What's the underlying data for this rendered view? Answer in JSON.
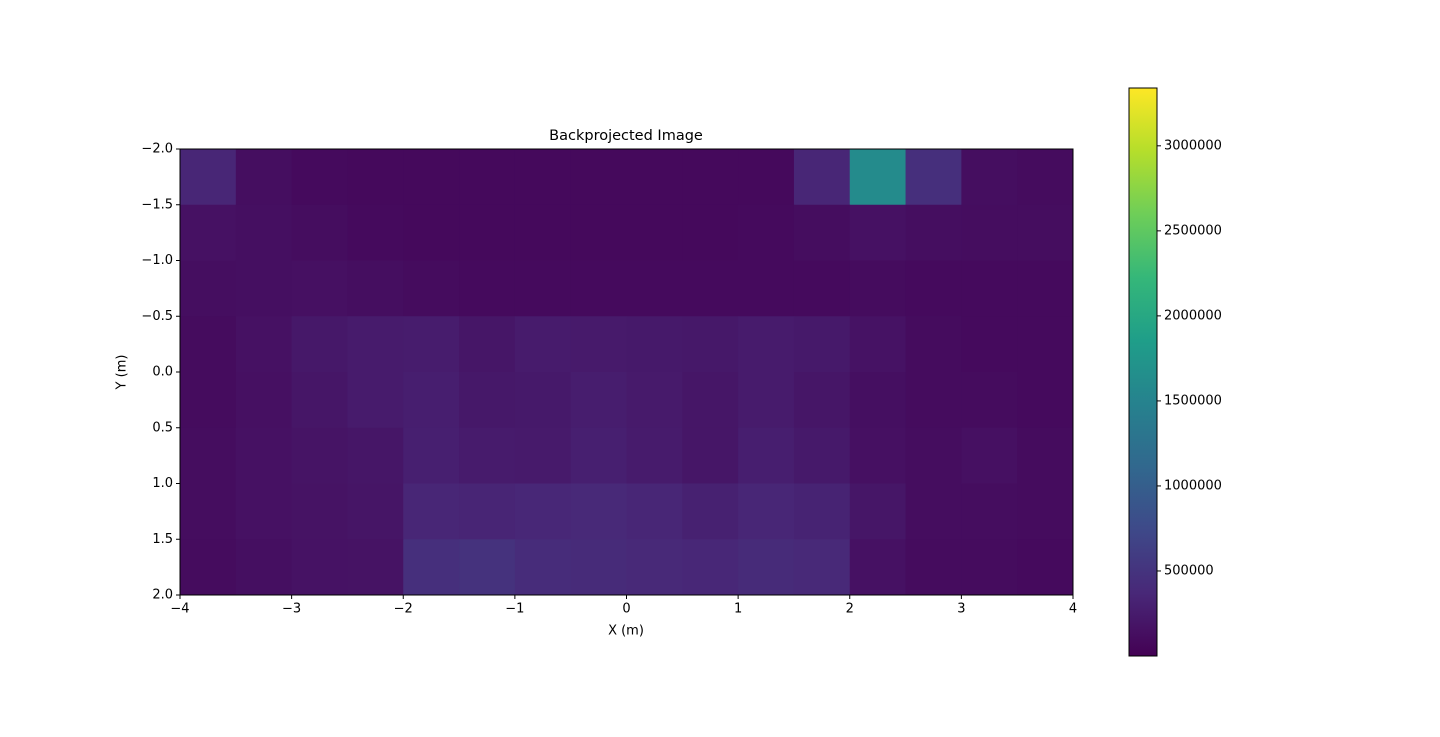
{
  "chart_data": {
    "type": "heatmap",
    "title": "Backprojected Image",
    "xlabel": "X (m)",
    "ylabel": "Y (m)",
    "colormap": "viridis",
    "xlim": [
      -4,
      4
    ],
    "ylim": [
      -2,
      2
    ],
    "y_inverted": true,
    "xticks": [
      {
        "value": -4,
        "label": "−4"
      },
      {
        "value": -3,
        "label": "−3"
      },
      {
        "value": -2,
        "label": "−2"
      },
      {
        "value": -1,
        "label": "−1"
      },
      0,
      1,
      2,
      3,
      4
    ],
    "yticks": [
      {
        "value": -2,
        "label": "−2.0"
      },
      {
        "value": -1.5,
        "label": "−1.5"
      },
      {
        "value": -1,
        "label": "−1.0"
      },
      {
        "value": -0.5,
        "label": "−0.5"
      },
      {
        "value": 0,
        "label": "0.0"
      },
      0.5,
      {
        "value": 1,
        "label": "1.0"
      },
      1.5,
      {
        "value": 2,
        "label": "2.0"
      }
    ],
    "zlim": [
      0,
      3340000
    ],
    "zticks": [
      500000,
      1000000,
      1500000,
      2000000,
      2500000,
      3000000
    ],
    "z": [
      [
        350000,
        120000,
        90000,
        80000,
        80000,
        80000,
        80000,
        80000,
        80000,
        80000,
        80000,
        350000,
        1600000,
        450000,
        120000,
        100000
      ],
      [
        150000,
        130000,
        110000,
        90000,
        80000,
        80000,
        80000,
        80000,
        80000,
        80000,
        90000,
        110000,
        150000,
        120000,
        110000,
        110000
      ],
      [
        120000,
        130000,
        140000,
        120000,
        100000,
        90000,
        90000,
        90000,
        90000,
        90000,
        90000,
        90000,
        100000,
        90000,
        90000,
        90000
      ],
      [
        100000,
        150000,
        220000,
        250000,
        260000,
        200000,
        250000,
        240000,
        230000,
        220000,
        250000,
        230000,
        160000,
        100000,
        90000,
        90000
      ],
      [
        100000,
        140000,
        200000,
        250000,
        280000,
        220000,
        230000,
        270000,
        240000,
        200000,
        250000,
        200000,
        130000,
        100000,
        100000,
        90000
      ],
      [
        110000,
        150000,
        180000,
        200000,
        290000,
        250000,
        240000,
        290000,
        250000,
        200000,
        280000,
        230000,
        140000,
        110000,
        140000,
        100000
      ],
      [
        110000,
        150000,
        170000,
        190000,
        350000,
        340000,
        360000,
        380000,
        350000,
        300000,
        350000,
        320000,
        200000,
        110000,
        110000,
        100000
      ],
      [
        100000,
        130000,
        160000,
        170000,
        450000,
        480000,
        420000,
        400000,
        380000,
        360000,
        400000,
        380000,
        150000,
        100000,
        100000,
        90000
      ]
    ]
  }
}
